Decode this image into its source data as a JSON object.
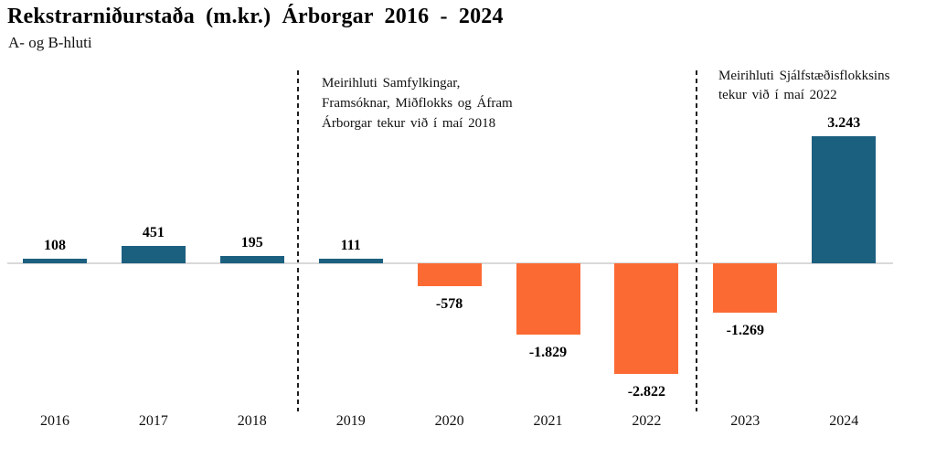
{
  "title": "Rekstrarniðurstaða (m.kr.) Árborgar 2016 - 2024",
  "subtitle": "A- og B-hluti",
  "annotations": {
    "left": "Meirihluti Samfylkingar,\nFramsóknar, Miðflokks og Áfram\nÁrborgar tekur við í maí 2018",
    "right": "Meirihluti Sjálfstæðisflokksins\ntekur við í maí 2022"
  },
  "colors": {
    "positive_bar": "#1C6080",
    "negative_bar": "#FC6A33",
    "zero_line": "#D9D9D9",
    "separator": "#1F1F1F"
  },
  "chart_data": {
    "type": "bar",
    "title": "Rekstrarniðurstaða (m.kr.) Árborgar 2016 - 2024",
    "subtitle": "A- og B-hluti",
    "categories": [
      "2016",
      "2017",
      "2018",
      "2019",
      "2020",
      "2021",
      "2022",
      "2023",
      "2024"
    ],
    "values": [
      108,
      451,
      195,
      111,
      -578,
      -1829,
      -2822,
      -1269,
      3243
    ],
    "value_labels": [
      "108",
      "451",
      "195",
      "111",
      "-578",
      "-1.829",
      "-2.822",
      "-1.269",
      "3.243"
    ],
    "xlabel": "",
    "ylabel": "",
    "unit": "m.kr.",
    "ylim": [
      -3000,
      3400
    ],
    "grid": false,
    "legend": "none",
    "axis_visible": "zero-baseline-only",
    "positive_color": "#1C6080",
    "negative_color": "#FC6A33",
    "separators_between": [
      [
        "2018",
        "2019"
      ],
      [
        "2022",
        "2023"
      ]
    ],
    "annotations": [
      "Meirihluti Samfylkingar, Framsóknar, Miðflokks og Áfram Árborgar tekur við í maí 2018",
      "Meirihluti Sjálfstæðisflokksins tekur við í maí 2022"
    ]
  }
}
